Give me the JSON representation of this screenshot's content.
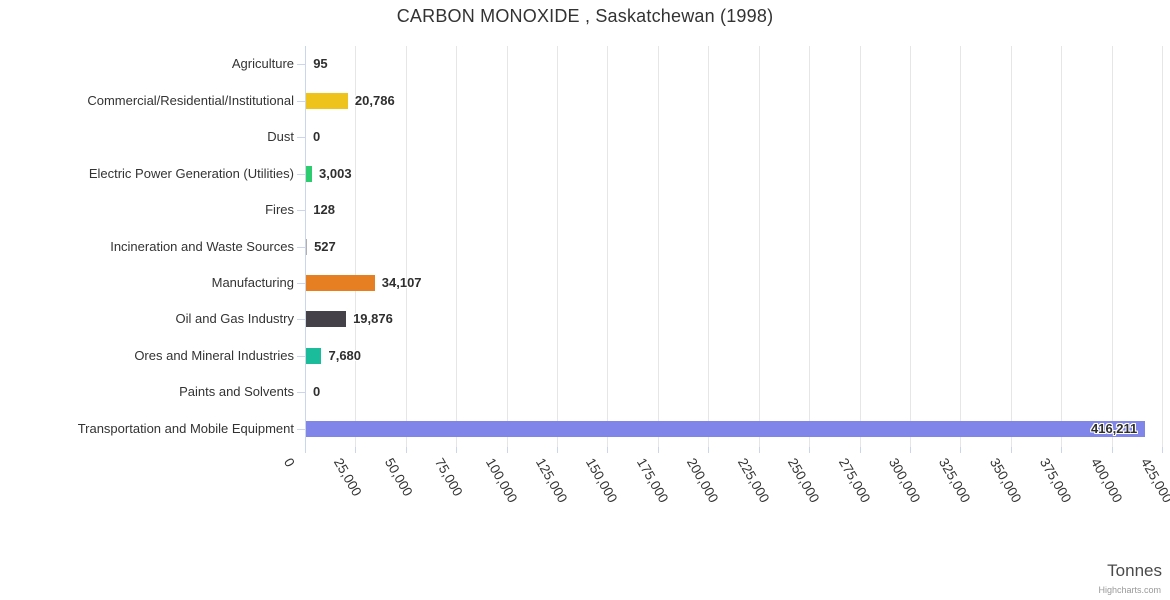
{
  "chart_data": {
    "type": "bar",
    "title": "CARBON MONOXIDE , Saskatchewan (1998)",
    "axis_title": "Tonnes",
    "credits": "Highcharts.com",
    "orientation": "horizontal",
    "grid": true,
    "legend": false,
    "xlim": [
      0,
      425000
    ],
    "tick_interval": 25000,
    "tick_labels": [
      "0",
      "25,000",
      "50,000",
      "75,000",
      "100,000",
      "125,000",
      "150,000",
      "175,000",
      "200,000",
      "225,000",
      "250,000",
      "275,000",
      "300,000",
      "325,000",
      "350,000",
      "375,000",
      "400,000",
      "425,000"
    ],
    "categories": [
      "Agriculture",
      "Commercial/Residential/Institutional",
      "Dust",
      "Electric Power Generation (Utilities)",
      "Fires",
      "Incineration and Waste Sources",
      "Manufacturing",
      "Oil and Gas Industry",
      "Ores and Mineral Industries",
      "Paints and Solvents",
      "Transportation and Mobile Equipment"
    ],
    "values": [
      95,
      20786,
      0,
      3003,
      128,
      527,
      34107,
      19876,
      7680,
      0,
      416211
    ],
    "value_labels": [
      "95",
      "20,786",
      "0",
      "3,003",
      "128",
      "527",
      "34,107",
      "19,876",
      "7,680",
      "0",
      "416,211"
    ],
    "bar_colors": [
      "#b0b0b0",
      "#eec31b",
      "#b0b0b0",
      "#2ecc71",
      "#b0b0b0",
      "#b0b0b0",
      "#e67e22",
      "#444149",
      "#1abc9c",
      "#b0b0b0",
      "#8085e9"
    ],
    "colors": {
      "grid": "#e6e6e6",
      "axis_line": "#ccd6eb",
      "text": "#333333"
    }
  }
}
